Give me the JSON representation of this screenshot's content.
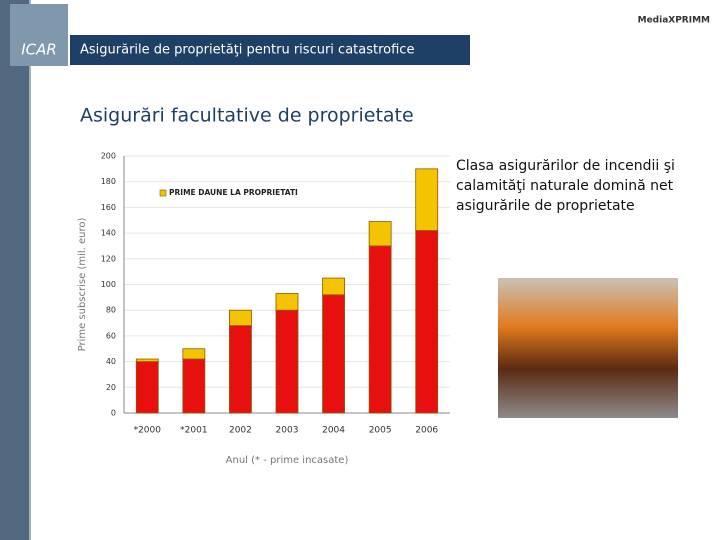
{
  "logo": "ICAR",
  "brand": "MediaXPRIMM",
  "header": {
    "title": "Asigurările de proprietăţi pentru riscuri catastrofice"
  },
  "section_title": "Asigurări facultative de proprietate",
  "note": "Clasa asigurărilor de incendii şi calamităţi naturale domină net asigurările de proprietate",
  "chart_data": {
    "type": "stacked_bar",
    "y_label": "Prime subscrise (mil. euro)",
    "x_label": "Anul (* - prime incasate)",
    "categories": [
      "*2000",
      "*2001",
      "2002",
      "2003",
      "2004",
      "2005",
      "2006"
    ],
    "series": [
      {
        "name": null,
        "color": "#e8100e",
        "values": [
          40,
          42,
          68,
          80,
          92,
          130,
          142
        ]
      },
      {
        "name": "PRIME DAUNE LA PROPRIETATI",
        "color": "#f5c400",
        "values": [
          2,
          8,
          12,
          13,
          13,
          19,
          48
        ]
      }
    ],
    "ylim": [
      0,
      200
    ],
    "yticks": [
      0,
      20,
      40,
      60,
      80,
      100,
      120,
      140,
      160,
      180,
      200
    ],
    "grid": true,
    "legend": "upper left"
  }
}
